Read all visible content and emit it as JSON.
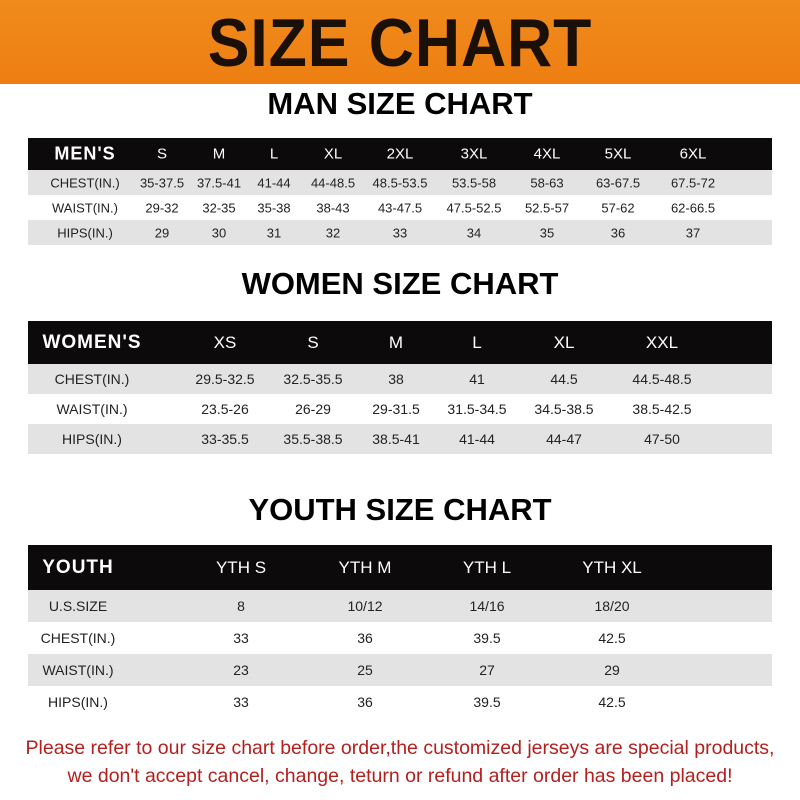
{
  "banner_title": "SIZE CHART",
  "men": {
    "title": "MAN SIZE CHART",
    "header": [
      "MEN'S",
      "S",
      "M",
      "L",
      "XL",
      "2XL",
      "3XL",
      "4XL",
      "5XL",
      "6XL"
    ],
    "rows": [
      [
        "CHEST(IN.)",
        "35-37.5",
        "37.5-41",
        "41-44",
        "44-48.5",
        "48.5-53.5",
        "53.5-58",
        "58-63",
        "63-67.5",
        "67.5-72"
      ],
      [
        "WAIST(IN.)",
        "29-32",
        "32-35",
        "35-38",
        "38-43",
        "43-47.5",
        "47.5-52.5",
        "52.5-57",
        "57-62",
        "62-66.5"
      ],
      [
        "HIPS(IN.)",
        "29",
        "30",
        "31",
        "32",
        "33",
        "34",
        "35",
        "36",
        "37"
      ]
    ]
  },
  "women": {
    "title": "WOMEN SIZE CHART",
    "header": [
      "WOMEN'S",
      "XS",
      "S",
      "M",
      "L",
      "XL",
      "XXL"
    ],
    "rows": [
      [
        "CHEST(IN.)",
        "29.5-32.5",
        "32.5-35.5",
        "38",
        "41",
        "44.5",
        "44.5-48.5"
      ],
      [
        "WAIST(IN.)",
        "23.5-26",
        "26-29",
        "29-31.5",
        "31.5-34.5",
        "34.5-38.5",
        "38.5-42.5"
      ],
      [
        "HIPS(IN.)",
        "33-35.5",
        "35.5-38.5",
        "38.5-41",
        "41-44",
        "44-47",
        "47-50"
      ]
    ]
  },
  "youth": {
    "title": "YOUTH SIZE CHART",
    "header": [
      "YOUTH",
      "YTH S",
      "YTH M",
      "YTH L",
      "YTH XL"
    ],
    "rows": [
      [
        "U.S.SIZE",
        "8",
        "10/12",
        "14/16",
        "18/20"
      ],
      [
        "CHEST(IN.)",
        "33",
        "36",
        "39.5",
        "42.5"
      ],
      [
        "WAIST(IN.)",
        "23",
        "25",
        "27",
        "29"
      ],
      [
        "HIPS(IN.)",
        "33",
        "36",
        "39.5",
        "42.5"
      ]
    ]
  },
  "notice": {
    "line1": "Please refer to our size chart before order,the customized jerseys are special products,",
    "line2": "we don't accept cancel, change, teturn or refund after order has been placed!"
  },
  "colors": {
    "banner": "#ee7f12",
    "header_row": "#0c0a0a",
    "stripe": "#e3e3e3",
    "notice": "#b3201e"
  }
}
